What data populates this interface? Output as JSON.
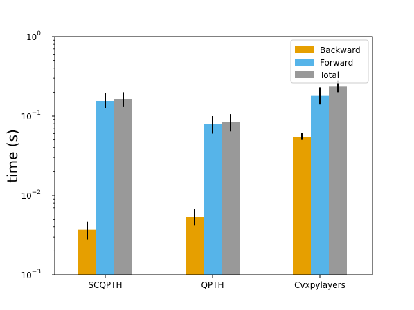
{
  "chart_data": {
    "type": "bar",
    "title": "",
    "xlabel": "",
    "ylabel": "time (s)",
    "yscale": "log",
    "ylim": [
      0.001,
      1
    ],
    "grid": false,
    "legend_position": "top-right",
    "categories": [
      "SCQPTH",
      "QPTH",
      "Cvxpylayers"
    ],
    "yticks": [
      {
        "value": 0.001,
        "base": "10",
        "exp": "−3"
      },
      {
        "value": 0.01,
        "base": "10",
        "exp": "−2"
      },
      {
        "value": 0.1,
        "base": "10",
        "exp": "−1"
      },
      {
        "value": 1,
        "base": "10",
        "exp": "0"
      }
    ],
    "series": [
      {
        "name": "Backward",
        "color": "#E69F00",
        "values": [
          0.0037,
          0.0053,
          0.054
        ],
        "err_low": [
          0.0028,
          0.0042,
          0.05
        ],
        "err_high": [
          0.0047,
          0.0067,
          0.061
        ]
      },
      {
        "name": "Forward",
        "color": "#56B4E9",
        "values": [
          0.155,
          0.079,
          0.18
        ],
        "err_low": [
          0.125,
          0.06,
          0.14
        ],
        "err_high": [
          0.195,
          0.1,
          0.23
        ]
      },
      {
        "name": "Total",
        "color": "#999999",
        "values": [
          0.162,
          0.084,
          0.235
        ],
        "err_low": [
          0.13,
          0.064,
          0.2
        ],
        "err_high": [
          0.2,
          0.106,
          0.28
        ]
      }
    ]
  }
}
